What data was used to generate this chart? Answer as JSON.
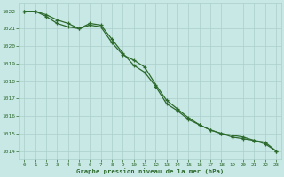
{
  "line1_y": [
    1022.0,
    1022.0,
    1021.8,
    1021.5,
    1021.3,
    1021.0,
    1021.3,
    1021.2,
    1020.4,
    1019.6,
    1018.9,
    1018.5,
    1017.7,
    1016.7,
    1016.3,
    1015.8,
    1015.5,
    1015.2,
    1015.0,
    1014.8,
    1014.7,
    1014.6,
    1014.5,
    1014.0
  ],
  "line2_y": [
    1022.0,
    1022.0,
    1021.7,
    1021.3,
    1021.1,
    1021.0,
    1021.2,
    1021.1,
    1020.2,
    1019.5,
    1019.2,
    1018.8,
    1017.8,
    1016.9,
    1016.4,
    1015.9,
    1015.5,
    1015.2,
    1015.0,
    1014.9,
    1014.8,
    1014.6,
    1014.4,
    1014.0
  ],
  "x": [
    0,
    1,
    2,
    3,
    4,
    5,
    6,
    7,
    8,
    9,
    10,
    11,
    12,
    13,
    14,
    15,
    16,
    17,
    18,
    19,
    20,
    21,
    22,
    23
  ],
  "line_color": "#2d6a2d",
  "background_color": "#c8e8e5",
  "grid_color": "#aacfcb",
  "text_color": "#2d6a2d",
  "xlabel": "Graphe pression niveau de la mer (hPa)",
  "ylim": [
    1013.5,
    1022.5
  ],
  "xlim": [
    -0.5,
    23.5
  ],
  "yticks": [
    1014,
    1015,
    1016,
    1017,
    1018,
    1019,
    1020,
    1021,
    1022
  ],
  "xticks": [
    0,
    1,
    2,
    3,
    4,
    5,
    6,
    7,
    8,
    9,
    10,
    11,
    12,
    13,
    14,
    15,
    16,
    17,
    18,
    19,
    20,
    21,
    22,
    23
  ],
  "markersize": 3.5,
  "linewidth": 0.9
}
